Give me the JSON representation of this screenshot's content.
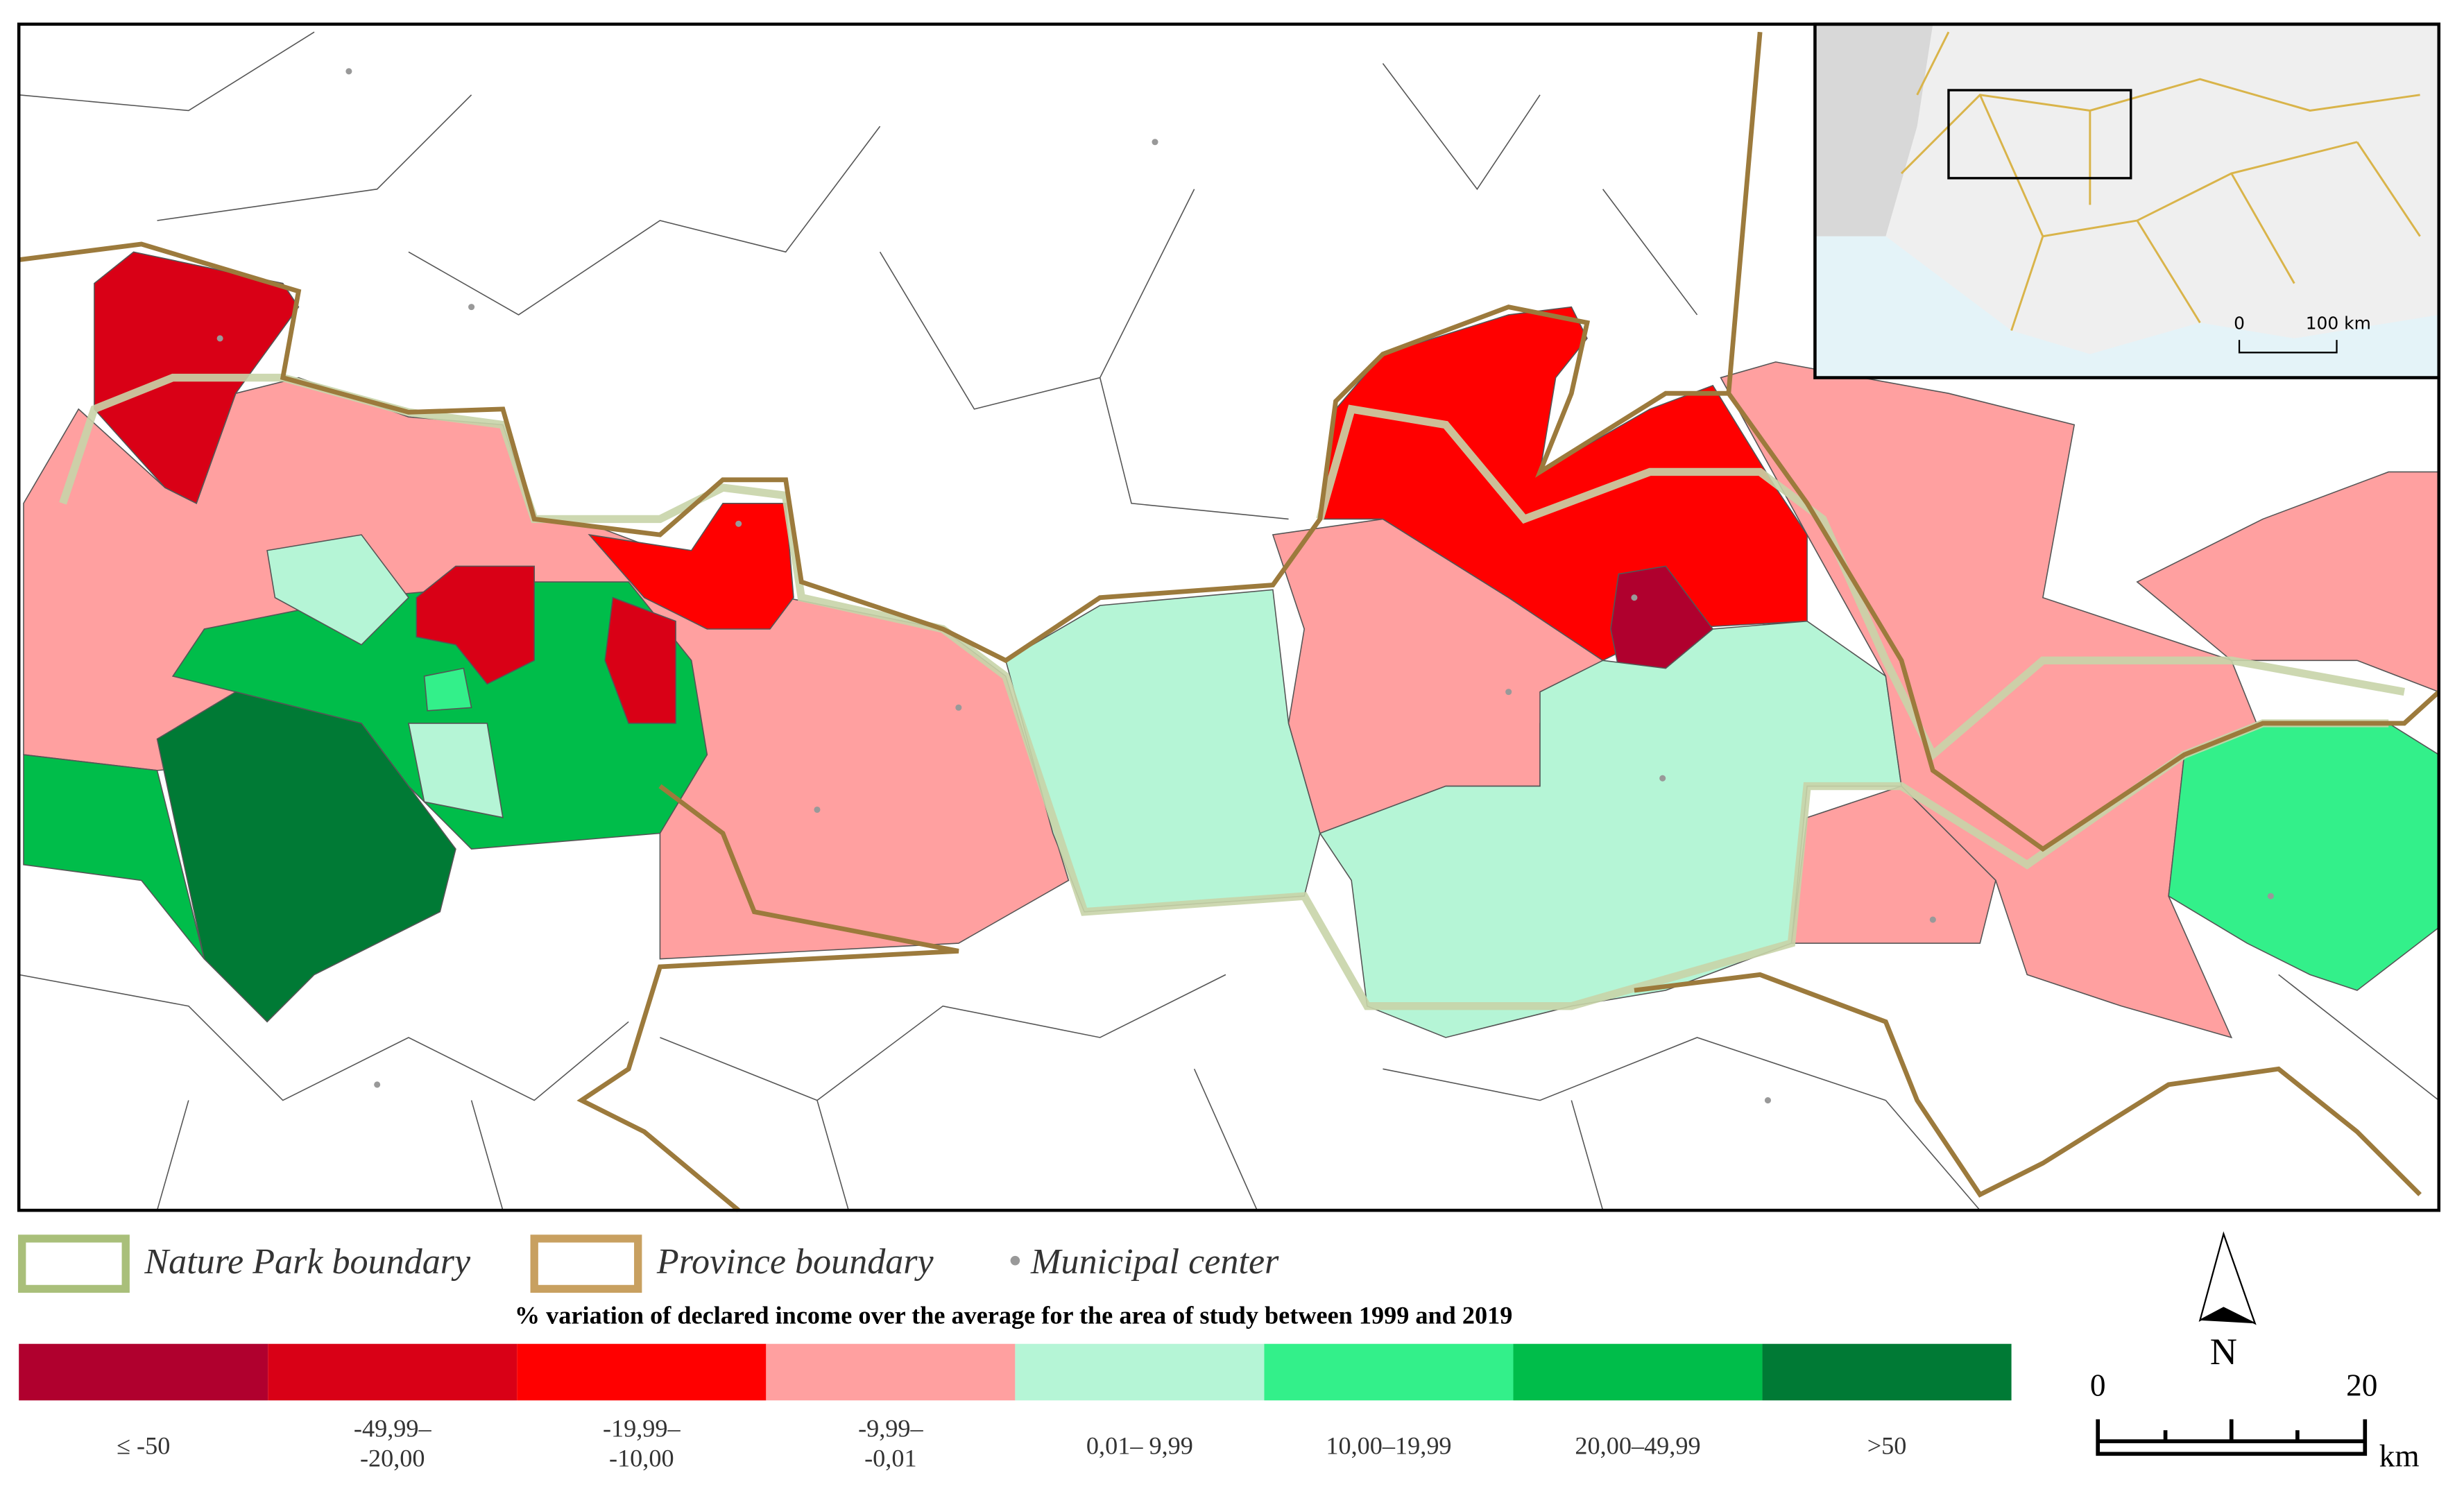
{
  "legend": {
    "items": [
      {
        "label": "Nature Park boundary"
      },
      {
        "label": "Province boundary"
      },
      {
        "label": "Municipal center"
      }
    ]
  },
  "color_scale": {
    "title": "% variation of declared income over the average for the area of study between 1999 and 2019",
    "classes": [
      {
        "lines": [
          "≤ -50"
        ],
        "color": "#b0002e"
      },
      {
        "lines": [
          "-49,99–",
          "-20,00"
        ],
        "color": "#d90016"
      },
      {
        "lines": [
          "-19,99–",
          "-10,00"
        ],
        "color": "#ff0000"
      },
      {
        "lines": [
          "-9,99–",
          "-0,01"
        ],
        "color": "#ffa0a0"
      },
      {
        "lines": [
          "0,01– 9,99"
        ],
        "color": "#b5f5d6"
      },
      {
        "lines": [
          "10,00–19,99"
        ],
        "color": "#33f08a"
      },
      {
        "lines": [
          "20,00–49,99"
        ],
        "color": "#00bd4a"
      },
      {
        "lines": [
          ">50"
        ],
        "color": "#007a35"
      }
    ]
  },
  "north_arrow": "N",
  "scale_bar": {
    "labels": [
      "0",
      "20"
    ],
    "unit": "km"
  },
  "inset": {
    "scale_labels": [
      "0",
      "100 km"
    ]
  }
}
